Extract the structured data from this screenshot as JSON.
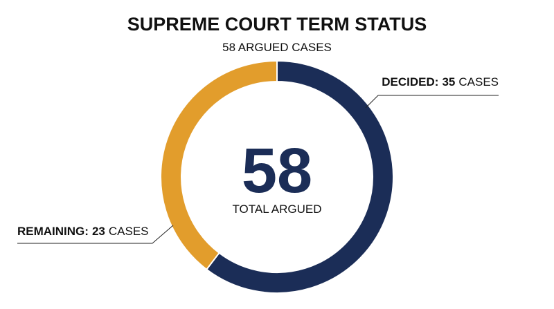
{
  "chart_data": {
    "type": "donut",
    "title": "SUPREME COURT TERM STATUS",
    "subtitle": "58 ARGUED CASES",
    "categories": [
      "DECIDED:",
      "REMAINING:"
    ],
    "values": [
      35,
      23
    ],
    "colors": [
      "#1b2d57",
      "#e29d2c"
    ],
    "unit": "CASES",
    "total": 58,
    "total_label": "TOTAL ARGUED"
  }
}
